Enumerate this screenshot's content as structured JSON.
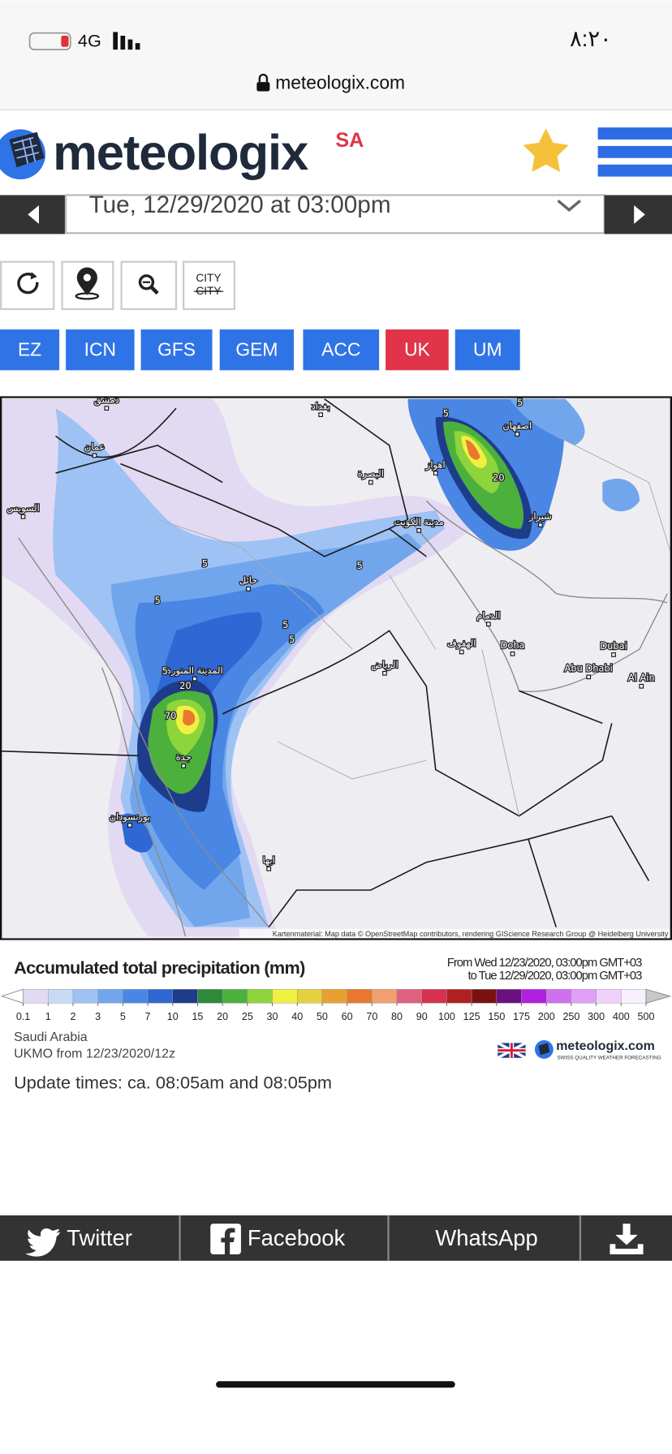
{
  "status_bar": {
    "network": "4G",
    "time": "٨:٢٠",
    "url": "meteologix.com"
  },
  "header": {
    "logo": "meteologix",
    "region": "SA"
  },
  "date_selector": "Tue, 12/29/2020 at 03:00pm",
  "tools": {
    "city_label": "CITY",
    "city_struck": "CITY"
  },
  "models": [
    "EZ",
    "ICN",
    "GFS",
    "GEM",
    "ACC",
    "UK",
    "UM"
  ],
  "active_model": "UK",
  "map": {
    "labels": [
      "دمشق",
      "بغداد",
      "عمان",
      "السويس",
      "البصرة",
      "اهواز",
      "اصفهان",
      "شيراز",
      "مدينة الكويت",
      "حائل",
      "المدينة المنورة",
      "جدة",
      "بورتسودان",
      "ابها",
      "الرياض",
      "الهفوف",
      "الدمام",
      "Doha",
      "Dubai",
      "Abu Dhabi",
      "Al Ain",
      "5",
      "5",
      "5",
      "5",
      "5",
      "5",
      "5",
      "5",
      "20",
      "20",
      "70"
    ],
    "attribution": "Kartenmaterial: Map data © OpenStreetMap contributors, rendering GIScience Research Group @ Heidelberg University"
  },
  "legend": {
    "title": "Accumulated total precipitation (mm)",
    "from": "From Wed 12/23/2020, 03:00pm GMT+03",
    "to": "to Tue 12/29/2020, 03:00pm GMT+03",
    "ticks": [
      0.1,
      1,
      2,
      3,
      5,
      7,
      10,
      15,
      20,
      25,
      30,
      40,
      50,
      60,
      70,
      80,
      90,
      100,
      125,
      150,
      175,
      200,
      250,
      300,
      400,
      500
    ],
    "colors": [
      "#e2daf2",
      "#c6daf8",
      "#9ec2f4",
      "#72a6ec",
      "#4a86e4",
      "#2f68d4",
      "#1e3c8c",
      "#2e8a3a",
      "#4cb03c",
      "#8ed43c",
      "#f0f040",
      "#e6d040",
      "#e8a030",
      "#e87830",
      "#f0a070",
      "#e06080",
      "#d83050",
      "#b02020",
      "#7a1010",
      "#6a1080",
      "#b020e0",
      "#d070f0",
      "#e0a0f8",
      "#f0d0fc",
      "#f8f0ff"
    ]
  },
  "info": {
    "region": "Saudi Arabia",
    "run": "UKMO from 12/23/2020/12z",
    "brand": "meteologix.com",
    "tagline": "SWISS QUALITY WEATHER FORECASTING"
  },
  "update_times": "Update times: ca. 08:05am and 08:05pm",
  "share": [
    "Twitter",
    "Facebook",
    "WhatsApp"
  ]
}
